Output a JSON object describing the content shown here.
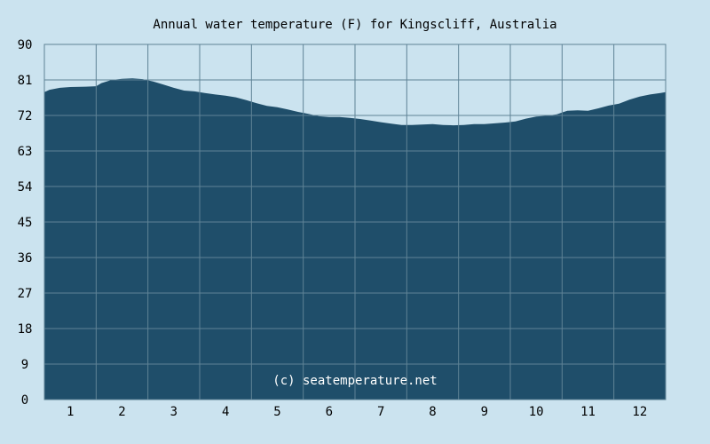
{
  "chart_data": {
    "type": "area",
    "title": "Annual water temperature (F) for Kingscliff, Australia",
    "watermark": "(c) seatemperature.net",
    "ylim": [
      0,
      90
    ],
    "xlim": [
      0.5,
      12.5
    ],
    "y_ticks": [
      0,
      9,
      18,
      27,
      36,
      45,
      54,
      63,
      72,
      81,
      90
    ],
    "x_ticks": [
      1,
      2,
      3,
      4,
      5,
      6,
      7,
      8,
      9,
      10,
      11,
      12
    ],
    "grid": true,
    "colors": {
      "background": "#cbe3ef",
      "plot_fill": "#1f4e6a",
      "grid": "#5f8396",
      "watermark_text": "#ffffff"
    },
    "series": [
      {
        "x": [
          0.5,
          0.6,
          0.8,
          1.0,
          1.3,
          1.5,
          1.6,
          1.8,
          2.0,
          2.2,
          2.4,
          2.6,
          2.8,
          3.0,
          3.2,
          3.4,
          3.6,
          3.8,
          4.0,
          4.2,
          4.4,
          4.6,
          4.8,
          5.0,
          5.2,
          5.4,
          5.6,
          5.8,
          6.0,
          6.2,
          6.4,
          6.6,
          6.8,
          7.0,
          7.2,
          7.4,
          7.6,
          7.8,
          8.0,
          8.2,
          8.4,
          8.6,
          8.8,
          9.0,
          9.2,
          9.4,
          9.6,
          9.8,
          10.0,
          10.2,
          10.4,
          10.6,
          10.8,
          11.0,
          11.2,
          11.4,
          11.6,
          11.8,
          12.0,
          12.2,
          12.4,
          12.5
        ],
        "values": [
          77.9,
          78.5,
          79.0,
          79.2,
          79.3,
          79.4,
          80.2,
          81.0,
          81.3,
          81.4,
          81.2,
          80.6,
          79.8,
          79.0,
          78.3,
          78.1,
          77.7,
          77.3,
          77.0,
          76.6,
          75.9,
          75.1,
          74.4,
          74.1,
          73.5,
          72.9,
          72.4,
          71.8,
          71.6,
          71.6,
          71.4,
          71.1,
          70.7,
          70.3,
          69.9,
          69.6,
          69.6,
          69.7,
          69.8,
          69.6,
          69.5,
          69.6,
          69.8,
          69.8,
          70.0,
          70.2,
          70.5,
          71.2,
          71.7,
          71.9,
          72.3,
          73.2,
          73.3,
          73.2,
          73.8,
          74.5,
          75.0,
          76.0,
          76.8,
          77.3,
          77.7,
          77.9
        ]
      }
    ]
  }
}
